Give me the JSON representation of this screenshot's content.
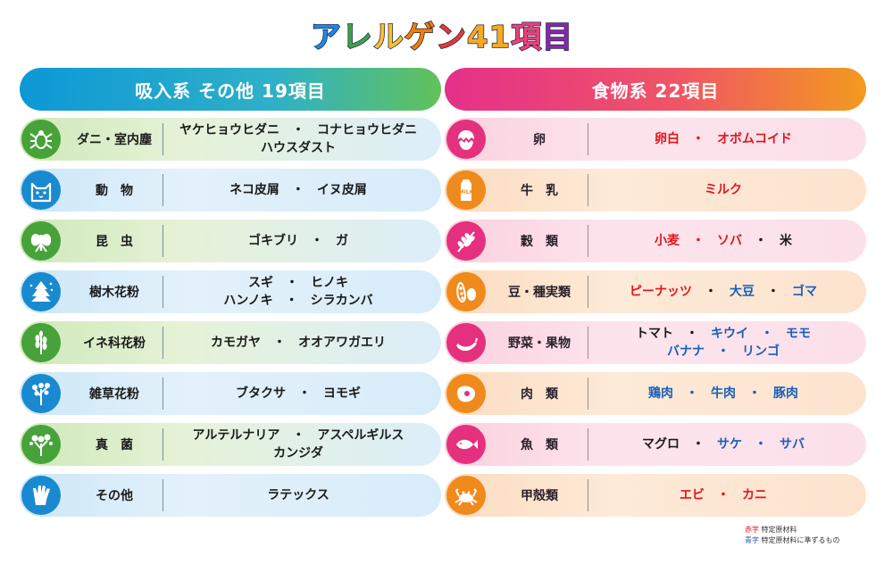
{
  "title": {
    "chars": [
      "ア",
      "レ",
      "ル",
      "ゲ",
      "ン",
      "41",
      "項",
      "目"
    ],
    "colors": [
      "#1e88e5",
      "#43a047",
      "#fbc02d",
      "#f57c00",
      "#e53935",
      "#f9a825",
      "#ec407a",
      "#8e24aa"
    ]
  },
  "left": {
    "header": "吸入系 その他 19項目",
    "rows": [
      {
        "category": "ダニ・室内塵",
        "icon": "mite-icon",
        "lines": [
          "ヤケヒョウヒダニ　・　コナヒョウヒダニ",
          "ハウスダスト"
        ]
      },
      {
        "category": "動　物",
        "icon": "cat-icon",
        "lines": [
          "ネコ皮屑　・　イヌ皮屑"
        ]
      },
      {
        "category": "昆　虫",
        "icon": "moth-icon",
        "lines": [
          "ゴキブリ　・　ガ"
        ]
      },
      {
        "category": "樹木花粉",
        "icon": "tree-icon",
        "lines": [
          "スギ　・　ヒノキ",
          "ハンノキ　・　シラカンバ"
        ]
      },
      {
        "category": "イネ科花粉",
        "icon": "rice-grass-icon",
        "lines": [
          "カモガヤ　・　オオアワガエリ"
        ]
      },
      {
        "category": "雑草花粉",
        "icon": "weed-icon",
        "lines": [
          "ブタクサ　・　ヨモギ"
        ]
      },
      {
        "category": "真　菌",
        "icon": "fungus-icon",
        "lines": [
          "アルテルナリア　・　アスペルギルス",
          "カンジダ"
        ]
      },
      {
        "category": "その他",
        "icon": "glove-icon",
        "lines": [
          "ラテックス"
        ]
      }
    ]
  },
  "right": {
    "header": "食物系 22項目",
    "rows": [
      {
        "category": "卵",
        "icon": "egg-icon",
        "lines": [
          [
            {
              "t": "卵白　・　オボムコイド",
              "c": "red"
            }
          ]
        ]
      },
      {
        "category": "牛　乳",
        "icon": "milk-icon",
        "lines": [
          [
            {
              "t": "ミルク",
              "c": "red"
            }
          ]
        ]
      },
      {
        "category": "穀　類",
        "icon": "wheat-icon",
        "lines": [
          [
            {
              "t": "小麦　・　ソバ",
              "c": "red"
            },
            {
              "t": "　・　米",
              "c": "blk"
            }
          ]
        ]
      },
      {
        "category": "豆・種実類",
        "icon": "beans-icon",
        "lines": [
          [
            {
              "t": "ピーナッツ",
              "c": "red"
            },
            {
              "t": "　・　",
              "c": "blk"
            },
            {
              "t": "大豆",
              "c": "blu"
            },
            {
              "t": "　・　",
              "c": "blk"
            },
            {
              "t": "ゴマ",
              "c": "blu"
            }
          ]
        ]
      },
      {
        "category": "野菜・果物",
        "icon": "banana-icon",
        "lines": [
          [
            {
              "t": "トマト　・　",
              "c": "blk"
            },
            {
              "t": "キウイ　・　モモ",
              "c": "blu"
            }
          ],
          [
            {
              "t": "バナナ　・　リンゴ",
              "c": "blu"
            }
          ]
        ]
      },
      {
        "category": "肉　類",
        "icon": "meat-icon",
        "lines": [
          [
            {
              "t": "鶏肉　・　牛肉　・　豚肉",
              "c": "blu"
            }
          ]
        ]
      },
      {
        "category": "魚　類",
        "icon": "fish-icon",
        "lines": [
          [
            {
              "t": "マグロ　・　",
              "c": "blk"
            },
            {
              "t": "サケ　・　サバ",
              "c": "blu"
            }
          ]
        ]
      },
      {
        "category": "甲殻類",
        "icon": "crab-icon",
        "lines": [
          [
            {
              "t": "エビ　・　カニ",
              "c": "red"
            }
          ]
        ]
      }
    ]
  },
  "legend": {
    "red_label": "赤字",
    "red_text": "特定原材料",
    "blue_label": "青字",
    "blue_text": "特定原材料に準ずるもの",
    "red_color": "#e0161c",
    "blue_color": "#1a5fb8"
  }
}
